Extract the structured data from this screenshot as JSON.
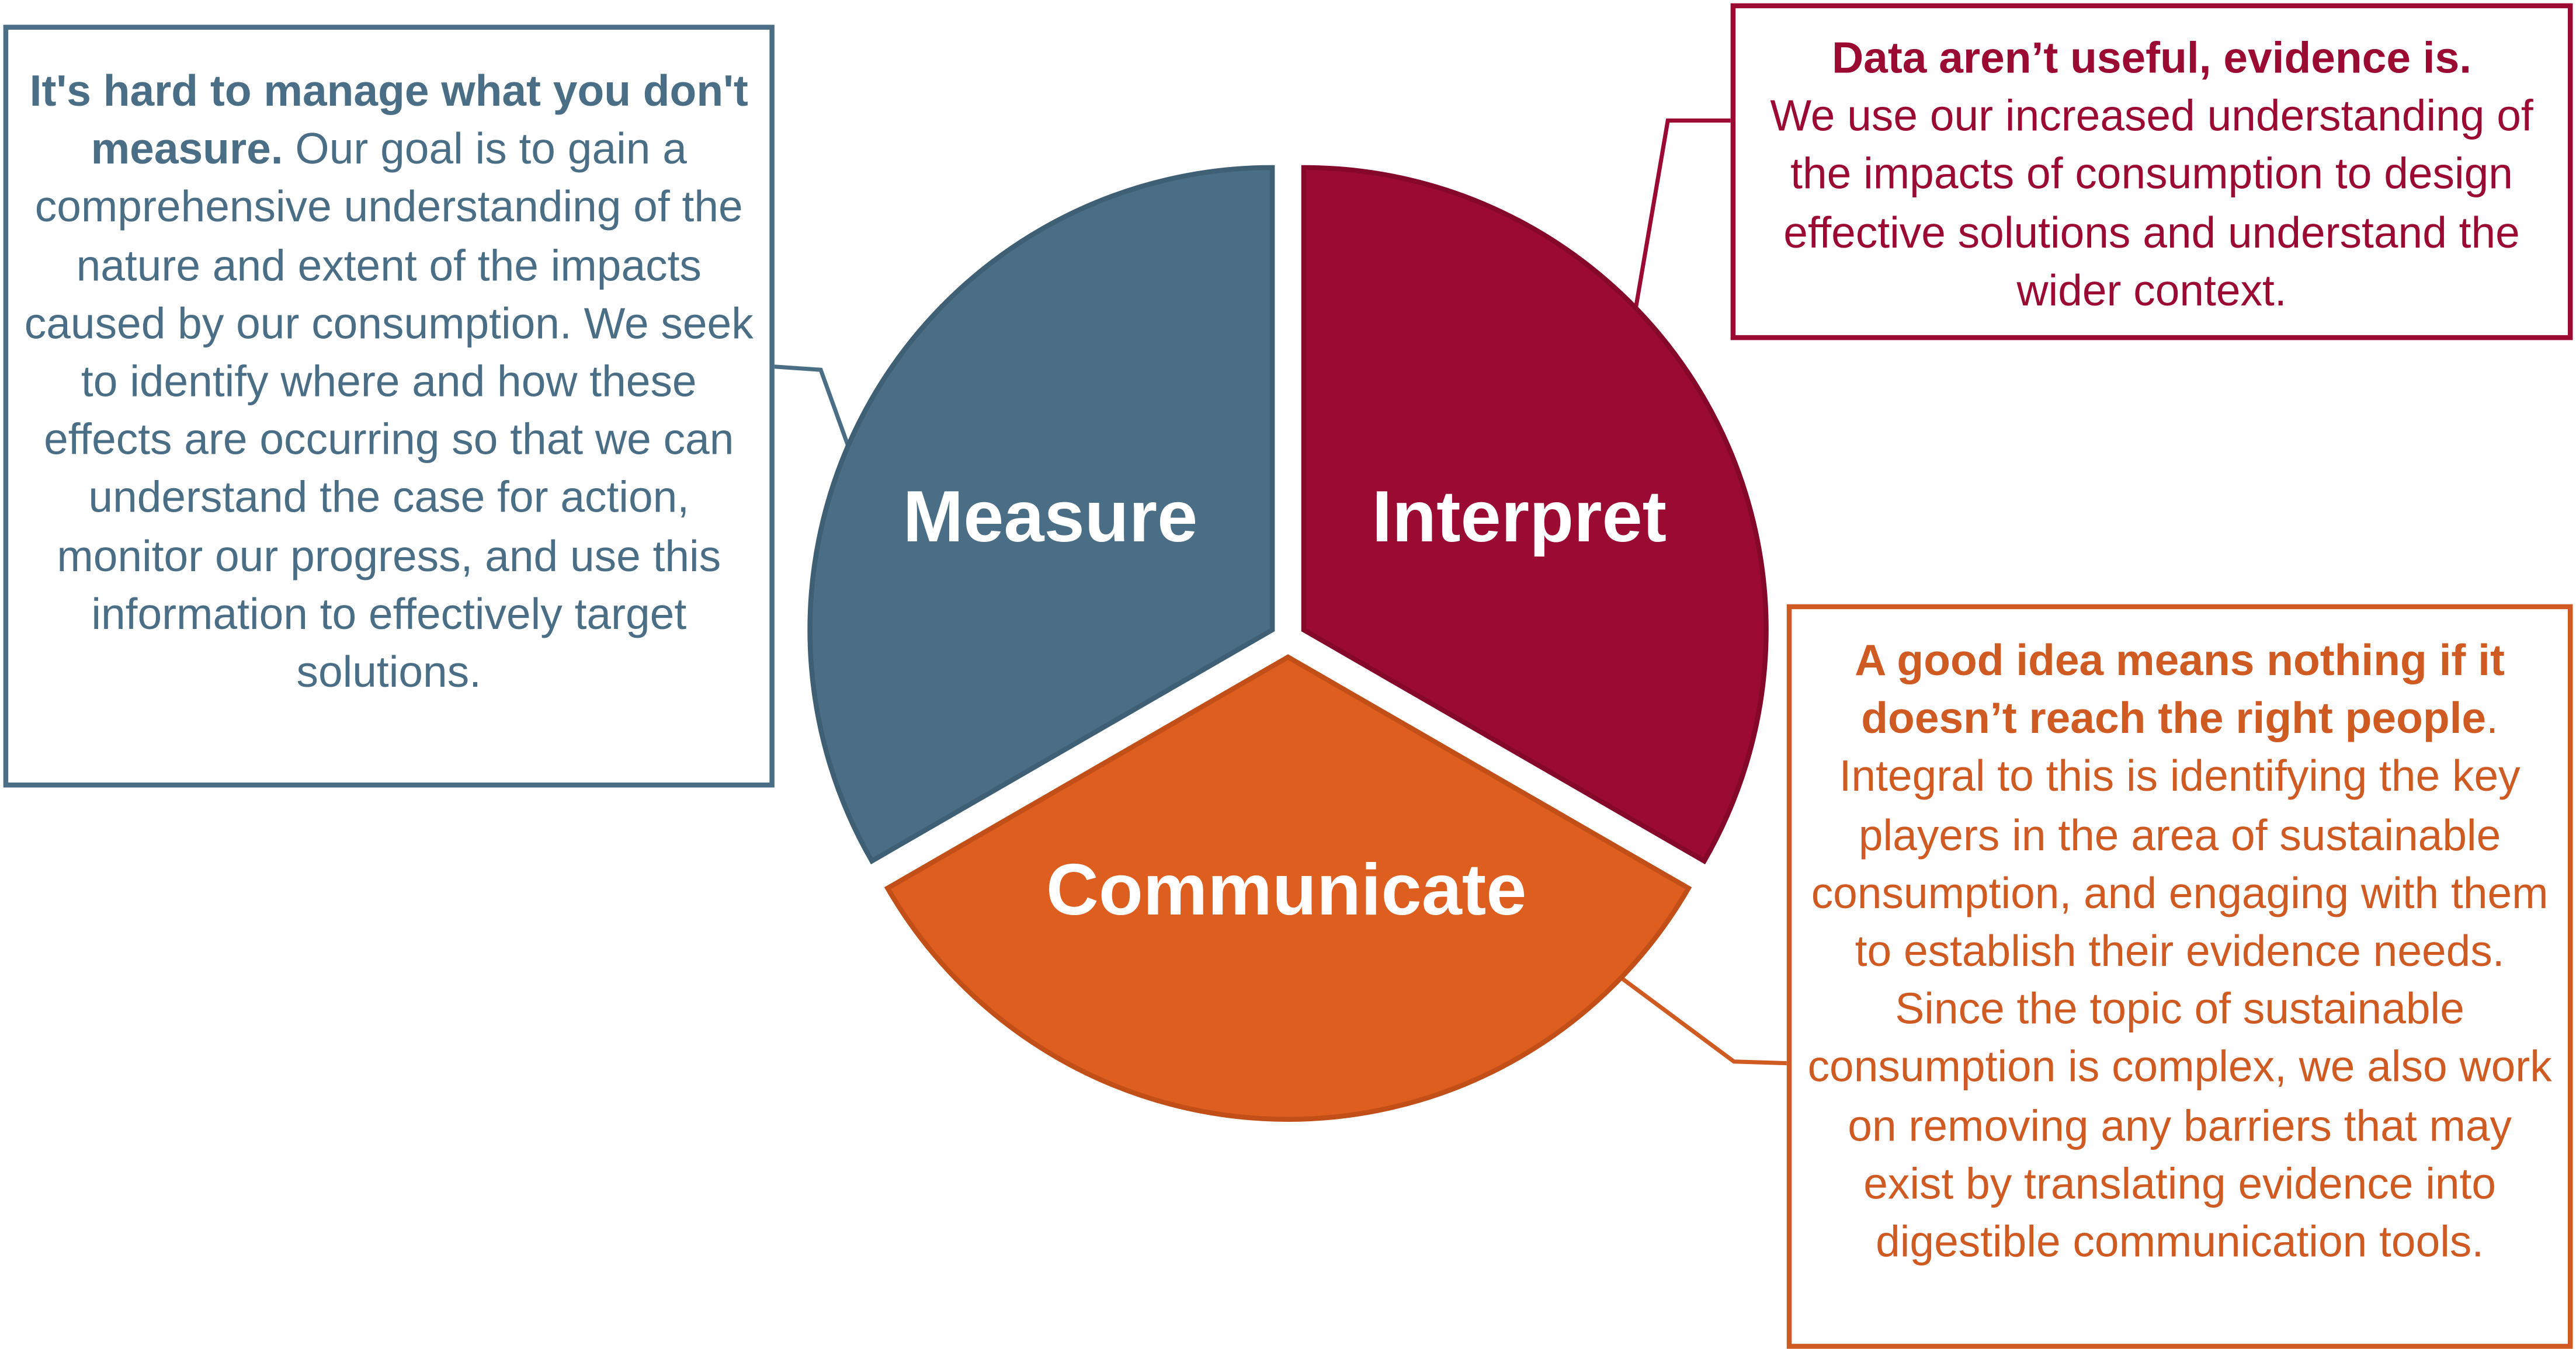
{
  "colors": {
    "measure": "#4a6e86",
    "interpret": "#9b0a33",
    "communicate": "#de5e1f"
  },
  "segments": {
    "measure": "Measure",
    "interpret": "Interpret",
    "communicate": "Communicate"
  },
  "measure_box": {
    "bold": "It's hard to manage what you don't measure.",
    "text": " Our goal is to gain a comprehensive understanding of the nature and extent of the impacts caused by our consumption. We seek to identify where and how these effects are occurring so that we can understand the case for action, monitor our progress, and use this information to effectively target solutions."
  },
  "interpret_box": {
    "bold": "Data aren’t useful, evidence is.",
    "text": "We use our increased understanding of the impacts of consumption to design effective solutions and understand the wider context."
  },
  "communicate_box": {
    "bold": "A good idea means nothing if it doesn’t reach the right people",
    "text": ". Integral to this is identifying the key players in the area of sustainable consumption, and engaging with them to establish their evidence needs. Since the topic of sustainable consumption is complex, we also work on removing any barriers that may exist by translating evidence into digestible communication tools."
  }
}
